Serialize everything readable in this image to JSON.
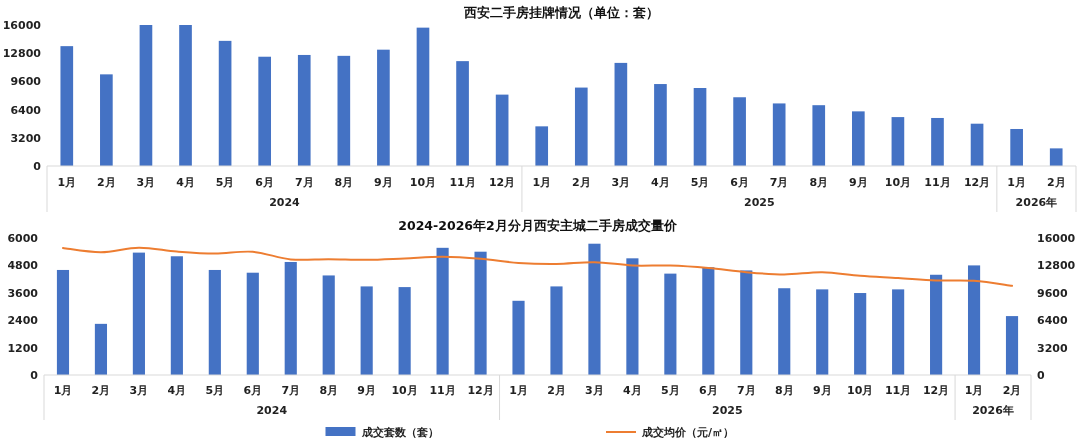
{
  "chart_data": [
    {
      "type": "bar",
      "title": "西安二手房挂牌情况（单位：套）",
      "categories": [
        "1月",
        "2月",
        "3月",
        "4月",
        "5月",
        "6月",
        "7月",
        "8月",
        "9月",
        "10月",
        "11月",
        "12月",
        "1月",
        "2月",
        "3月",
        "4月",
        "5月",
        "6月",
        "7月",
        "8月",
        "9月",
        "10月",
        "11月",
        "12月",
        "1月",
        "2月"
      ],
      "annotations": [
        "2024",
        "2025",
        "2026年"
      ],
      "series": [
        {
          "color": "#4472c4",
          "values": [
            13600,
            10400,
            16000,
            16000,
            14200,
            12400,
            12600,
            12500,
            13200,
            15700,
            11900,
            8100,
            4500,
            8900,
            11700,
            9300,
            8850,
            7800,
            7100,
            6900,
            6200,
            5550,
            5450,
            4800,
            4200,
            2000
          ]
        }
      ],
      "ylim": [
        0,
        16000
      ],
      "yticks": [
        0,
        3200,
        6400,
        9600,
        12800,
        16000
      ],
      "grid": false,
      "legend": false
    },
    {
      "type": "bar",
      "title": "2024-2026年2月分月西安主城二手房成交量价",
      "categories": [
        "1月",
        "2月",
        "3月",
        "4月",
        "5月",
        "6月",
        "7月",
        "8月",
        "9月",
        "10月",
        "11月",
        "12月",
        "1月",
        "2月",
        "3月",
        "4月",
        "5月",
        "6月",
        "7月",
        "8月",
        "9月",
        "10月",
        "11月",
        "12月",
        "1月",
        "2月"
      ],
      "annotations": [
        "2024",
        "2025",
        "2026年"
      ],
      "series": [
        {
          "name": "成交套数（套）",
          "color": "#4472c4",
          "values": [
            4600,
            2240,
            5360,
            5200,
            4600,
            4480,
            4950,
            4360,
            3880,
            3850,
            5570,
            5400,
            3250,
            3880,
            5750,
            5110,
            4440,
            4720,
            4580,
            3800,
            3750,
            3590,
            3750,
            4390,
            4800,
            2580
          ]
        },
        {
          "name": "成交均价（元/㎡）",
          "type": "line",
          "axis": "y2",
          "color": "#ed7d31",
          "values": [
            14830,
            14340,
            14870,
            14420,
            14180,
            14390,
            13500,
            13530,
            13450,
            13620,
            13810,
            13580,
            13090,
            12970,
            13180,
            12790,
            12790,
            12500,
            12010,
            11750,
            12010,
            11590,
            11330,
            11040,
            11000,
            10420
          ]
        }
      ],
      "ylim": [
        0,
        6000
      ],
      "yticks": [
        0,
        1200,
        2400,
        3600,
        4800,
        6000
      ],
      "y2lim": [
        0,
        16000
      ],
      "y2ticks": [
        0,
        3200,
        6400,
        9600,
        12800,
        16000
      ],
      "grid": false,
      "legend": "bottom",
      "marker": "none",
      "line_style": "solid"
    }
  ]
}
